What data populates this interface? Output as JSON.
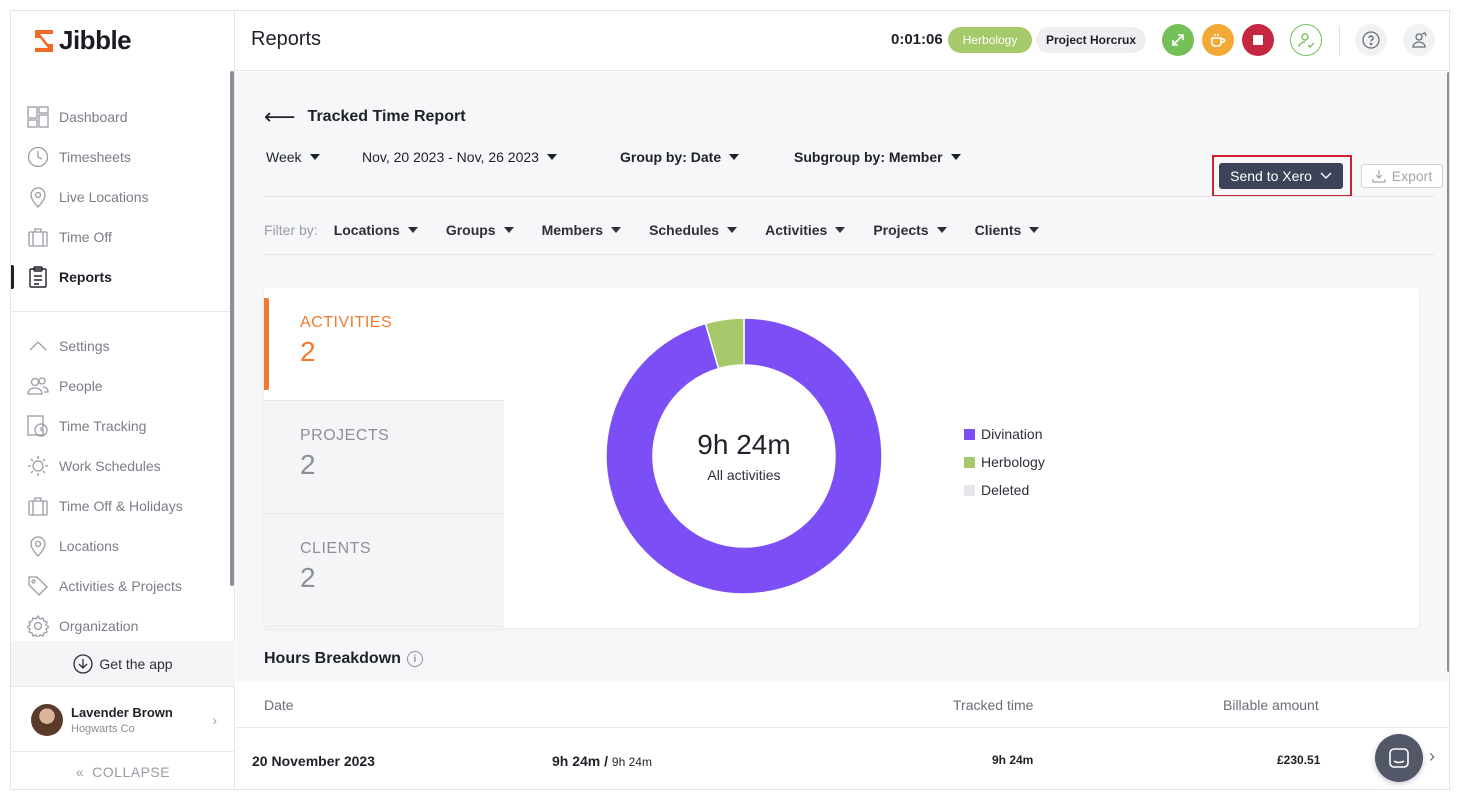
{
  "app": {
    "name": "Jibble"
  },
  "sidebar": {
    "items": [
      {
        "label": "Dashboard",
        "icon": "dashboard-icon"
      },
      {
        "label": "Timesheets",
        "icon": "clock-icon"
      },
      {
        "label": "Live Locations",
        "icon": "map-pin-icon"
      },
      {
        "label": "Time Off",
        "icon": "suitcase-icon"
      },
      {
        "label": "Reports",
        "icon": "clipboard-icon",
        "active": true
      }
    ],
    "settings_items": [
      {
        "label": "Settings",
        "icon": "chevron-up-icon"
      },
      {
        "label": "People",
        "icon": "people-icon"
      },
      {
        "label": "Time Tracking",
        "icon": "time-tracking-icon"
      },
      {
        "label": "Work Schedules",
        "icon": "schedule-icon"
      },
      {
        "label": "Time Off & Holidays",
        "icon": "suitcase-icon"
      },
      {
        "label": "Locations",
        "icon": "map-pin-icon"
      },
      {
        "label": "Activities & Projects",
        "icon": "tag-icon"
      },
      {
        "label": "Organization",
        "icon": "gear-icon"
      }
    ],
    "get_app": "Get the app",
    "user": {
      "name": "Lavender Brown",
      "org": "Hogwarts Co"
    },
    "collapse": "COLLAPSE"
  },
  "topbar": {
    "title": "Reports",
    "timer": "0:01:06",
    "activity_pill": "Herbology",
    "project_pill": "Project Horcrux"
  },
  "report": {
    "title": "Tracked Time Report",
    "period": "Week",
    "date_range": "Nov, 20 2023 - Nov, 26 2023",
    "group_by": "Group by: Date",
    "subgroup_by": "Subgroup by: Member",
    "send_to_xero": "Send to Xero",
    "export": "Export",
    "filter_label": "Filter by:",
    "filters": [
      "Locations",
      "Groups",
      "Members",
      "Schedules",
      "Activities",
      "Projects",
      "Clients"
    ]
  },
  "summary": {
    "tabs": [
      {
        "label": "ACTIVITIES",
        "count": "2"
      },
      {
        "label": "PROJECTS",
        "count": "2"
      },
      {
        "label": "CLIENTS",
        "count": "2"
      }
    ],
    "total": "9h 24m",
    "total_sub": "All activities"
  },
  "chart_data": {
    "type": "pie",
    "categories": [
      "Divination",
      "Herbology",
      "Deleted"
    ],
    "values": [
      0.955,
      0.045,
      0
    ],
    "colors": [
      "#7b4ff5",
      "#a6ca6b",
      "#e6e7eb"
    ],
    "legend_position": "right"
  },
  "breakdown": {
    "title": "Hours Breakdown",
    "columns": {
      "date": "Date",
      "tracked": "Tracked time",
      "billable": "Billable amount"
    },
    "rows": [
      {
        "date": "20 November 2023",
        "hours_main": "9h 24m /",
        "hours_sub": "9h 24m",
        "tracked": "9h 24m",
        "billable": "£230.51"
      }
    ]
  },
  "colors": {
    "accent": "#ee7b30",
    "xero_button": "#3d4359",
    "highlight_box": "#d21f2c"
  }
}
